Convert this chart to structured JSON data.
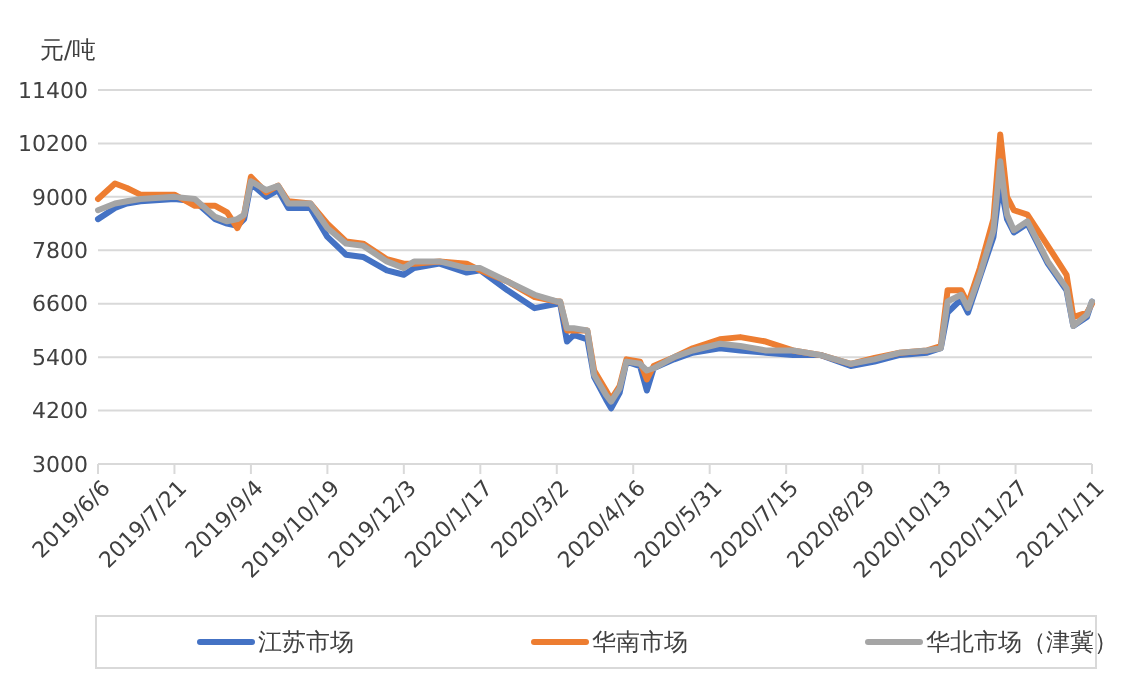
{
  "chart_data": {
    "type": "line",
    "ylabel": "元/吨",
    "legend": "bottom",
    "grid": "y",
    "line_style": "solid",
    "marker": "none",
    "xlim": [
      "2019-06-06",
      "2021-01-11"
    ],
    "xticks": [
      {
        "value": "2019-06-06",
        "label": "2019/6/6"
      },
      {
        "value": "2019-07-21",
        "label": "2019/7/21"
      },
      {
        "value": "2019-09-04",
        "label": "2019/9/4"
      },
      {
        "value": "2019-10-19",
        "label": "2019/10/19"
      },
      {
        "value": "2019-12-03",
        "label": "2019/12/3"
      },
      {
        "value": "2020-01-17",
        "label": "2020/1/17"
      },
      {
        "value": "2020-03-02",
        "label": "2020/3/2"
      },
      {
        "value": "2020-04-16",
        "label": "2020/4/16"
      },
      {
        "value": "2020-05-31",
        "label": "2020/5/31"
      },
      {
        "value": "2020-07-15",
        "label": "2020/7/15"
      },
      {
        "value": "2020-08-29",
        "label": "2020/8/29"
      },
      {
        "value": "2020-10-13",
        "label": "2020/10/13"
      },
      {
        "value": "2020-11-27",
        "label": "2020/11/27"
      },
      {
        "value": "2021-01-11",
        "label": "2021/1/11"
      }
    ],
    "ylim": [
      3000,
      11400
    ],
    "yticks": [
      3000,
      4200,
      5400,
      6600,
      7800,
      9000,
      10200,
      11400
    ],
    "x": [
      "2019-06-06",
      "2019-06-16",
      "2019-06-23",
      "2019-07-01",
      "2019-07-21",
      "2019-08-02",
      "2019-08-14",
      "2019-08-21",
      "2019-08-27",
      "2019-08-31",
      "2019-09-04",
      "2019-09-13",
      "2019-09-20",
      "2019-09-26",
      "2019-10-09",
      "2019-10-19",
      "2019-10-30",
      "2019-11-09",
      "2019-11-23",
      "2019-12-03",
      "2019-12-09",
      "2019-12-24",
      "2020-01-09",
      "2020-01-17",
      "2020-02-02",
      "2020-02-18",
      "2020-03-02",
      "2020-03-04",
      "2020-03-08",
      "2020-03-12",
      "2020-03-20",
      "2020-03-24",
      "2020-03-31",
      "2020-04-03",
      "2020-04-08",
      "2020-04-12",
      "2020-04-20",
      "2020-04-24",
      "2020-04-28",
      "2020-05-10",
      "2020-05-21",
      "2020-06-06",
      "2020-06-18",
      "2020-07-03",
      "2020-07-19",
      "2020-08-04",
      "2020-08-22",
      "2020-09-05",
      "2020-09-20",
      "2020-10-06",
      "2020-10-14",
      "2020-10-18",
      "2020-10-26",
      "2020-10-30",
      "2020-11-06",
      "2020-11-14",
      "2020-11-18",
      "2020-11-22",
      "2020-11-26",
      "2020-12-04",
      "2020-12-16",
      "2020-12-27",
      "2020-12-31",
      "2021-01-08",
      "2021-01-11"
    ],
    "series": [
      {
        "name": "江苏市场",
        "color": "#4472c4",
        "values": [
          8500,
          8750,
          8850,
          8900,
          8950,
          8900,
          8500,
          8400,
          8350,
          8500,
          9300,
          9000,
          9150,
          8750,
          8750,
          8100,
          7700,
          7650,
          7350,
          7250,
          7400,
          7500,
          7300,
          7350,
          6900,
          6500,
          6600,
          6600,
          5750,
          5900,
          5800,
          4950,
          4450,
          4250,
          4600,
          5300,
          5200,
          4650,
          5150,
          5350,
          5500,
          5600,
          5550,
          5500,
          5450,
          5450,
          5200,
          5300,
          5450,
          5500,
          5600,
          6400,
          6700,
          6400,
          7200,
          8100,
          9300,
          8500,
          8200,
          8400,
          7500,
          6900,
          6100,
          6300,
          6650
        ]
      },
      {
        "name": "华南市场",
        "color": "#ed7d31",
        "values": [
          8950,
          9300,
          9200,
          9050,
          9050,
          8800,
          8800,
          8650,
          8300,
          8600,
          9450,
          9100,
          9250,
          8900,
          8850,
          8400,
          8000,
          7950,
          7600,
          7500,
          7500,
          7550,
          7500,
          7350,
          7100,
          6750,
          6650,
          6650,
          6000,
          6000,
          6000,
          5100,
          4650,
          4450,
          4750,
          5350,
          5300,
          4900,
          5200,
          5400,
          5600,
          5800,
          5850,
          5750,
          5550,
          5450,
          5250,
          5380,
          5500,
          5550,
          5650,
          6900,
          6900,
          6600,
          7400,
          8500,
          10400,
          9000,
          8700,
          8600,
          7900,
          7250,
          6300,
          6400,
          6600
        ]
      },
      {
        "name": "华北市场（津冀）",
        "color": "#a5a5a5",
        "values": [
          8700,
          8850,
          8900,
          8950,
          9000,
          8950,
          8550,
          8450,
          8500,
          8600,
          9350,
          9150,
          9250,
          8850,
          8850,
          8300,
          7950,
          7900,
          7550,
          7400,
          7550,
          7550,
          7400,
          7400,
          7100,
          6800,
          6650,
          6650,
          6050,
          6050,
          6000,
          5000,
          4550,
          4400,
          4700,
          5300,
          5250,
          5100,
          5150,
          5400,
          5550,
          5700,
          5650,
          5550,
          5550,
          5450,
          5250,
          5350,
          5500,
          5550,
          5600,
          6650,
          6800,
          6500,
          7250,
          8250,
          9800,
          8600,
          8250,
          8450,
          7550,
          6950,
          6100,
          6350,
          6650
        ]
      }
    ]
  }
}
